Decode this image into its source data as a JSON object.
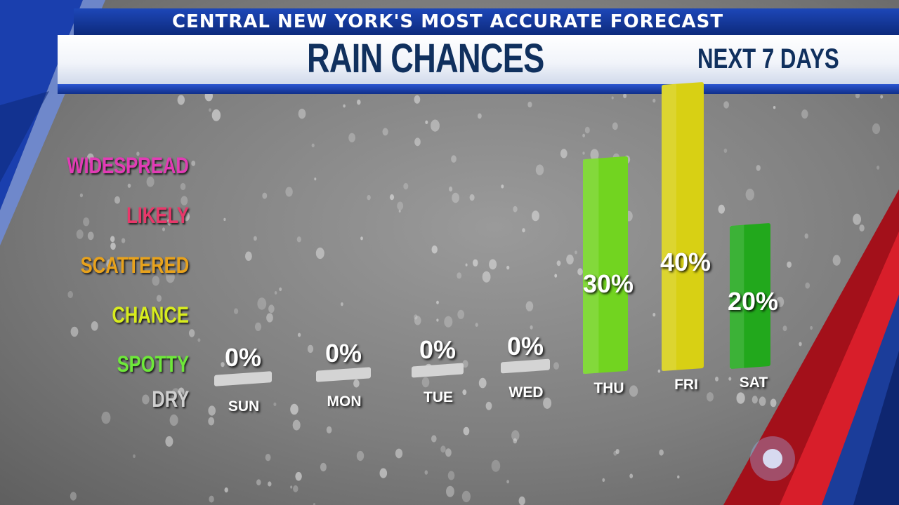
{
  "header": {
    "tagline": "CENTRAL NEW YORK'S MOST ACCURATE FORECAST",
    "title": "RAIN CHANCES",
    "subtitle": "NEXT 7 DAYS"
  },
  "levels": [
    {
      "label": "WIDESPREAD",
      "color": "#e23bb5"
    },
    {
      "label": "LIKELY",
      "color": "#e8386a"
    },
    {
      "label": "SCATTERED",
      "color": "#e8a21c"
    },
    {
      "label": "CHANCE",
      "color": "#d8ec1e"
    },
    {
      "label": "SPOTTY",
      "color": "#6ee83a"
    },
    {
      "label": "DRY",
      "color": "#cfcfcf"
    }
  ],
  "chart_data": {
    "type": "bar",
    "title": "RAIN CHANCES",
    "subtitle": "NEXT 7 DAYS",
    "categories": [
      "SUN",
      "MON",
      "TUE",
      "WED",
      "THU",
      "FRI",
      "SAT"
    ],
    "series": [
      {
        "values": [
          0,
          0,
          0,
          0,
          30,
          40,
          20
        ]
      }
    ],
    "value_labels": [
      "0%",
      "0%",
      "0%",
      "0%",
      "30%",
      "40%",
      "20%"
    ],
    "bar_colors": [
      "#d4d4d4",
      "#d4d4d4",
      "#d4d4d4",
      "#d4d4d4",
      "#72d420",
      "#d8d014",
      "#22a81c"
    ],
    "unit": "%",
    "ylim": [
      0,
      100
    ],
    "legend": "none",
    "grid": false
  }
}
